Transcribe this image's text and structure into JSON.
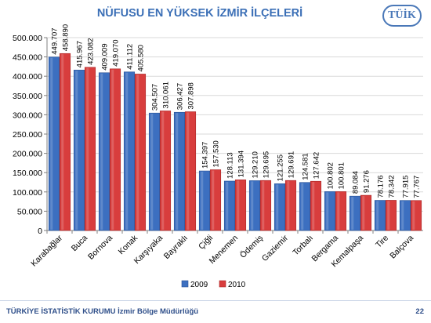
{
  "slide": {
    "title": "NÜFUSU EN YÜKSEK İZMİR İLÇELERİ",
    "logo_text": "TÜİK",
    "footer": "TÜRKİYE İSTATİSTİK KURUMU İzmir Bölge Müdürlüğü",
    "page_number": "22"
  },
  "colors": {
    "2009": "#3c6fc0",
    "2010": "#d83d3d"
  },
  "chart_data": {
    "type": "bar",
    "title": "NÜFUSU EN YÜKSEK İZMİR İLÇELERİ",
    "xlabel": "",
    "ylabel": "",
    "ylim": [
      0,
      500000
    ],
    "yticks": [
      0,
      50000,
      100000,
      150000,
      200000,
      250000,
      300000,
      350000,
      400000,
      450000,
      500000
    ],
    "ytick_labels": [
      "0",
      "50.000",
      "100.000",
      "150.000",
      "200.000",
      "250.000",
      "300.000",
      "350.000",
      "400.000",
      "450.000",
      "500.000"
    ],
    "grid": true,
    "legend": "bottom",
    "categories": [
      "Karabağlar",
      "Buca",
      "Bornova",
      "Konak",
      "Karşıyaka",
      "Bayraklı",
      "Çiğli",
      "Menemen",
      "Ödemiş",
      "Gaziemir",
      "Torbalı",
      "Bergama",
      "Kemalpaşa",
      "Tire",
      "Balçova"
    ],
    "series": [
      {
        "name": "2009",
        "values": [
          449707,
          415967,
          409009,
          411112,
          304507,
          306427,
          154397,
          128113,
          129210,
          121255,
          124581,
          100802,
          89084,
          78176,
          77915
        ],
        "labels": [
          "449.707",
          "415.967",
          "409.009",
          "411.112",
          "304.507",
          "306.427",
          "154.397",
          "128.113",
          "129.210",
          "121.255",
          "124.581",
          "100.802",
          "89.084",
          "78.176",
          "77.915"
        ]
      },
      {
        "name": "2010",
        "values": [
          458890,
          423082,
          419070,
          405580,
          310061,
          307898,
          157530,
          131394,
          129695,
          129691,
          127642,
          100801,
          91276,
          78342,
          77767
        ],
        "labels": [
          "458.890",
          "423.082",
          "419.070",
          "405.580",
          "310.061",
          "307.898",
          "157.530",
          "131.394",
          "129.695",
          "129.691",
          "127.642",
          "100.801",
          "91.276",
          "78.342",
          "77.767"
        ]
      }
    ]
  }
}
